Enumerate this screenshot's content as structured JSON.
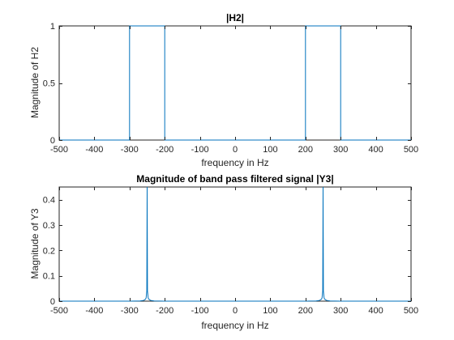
{
  "chart_data": [
    {
      "type": "line",
      "title": "|H2|",
      "xlabel": "frequency in Hz",
      "ylabel": "Magnitude of H2",
      "xlim": [
        -500,
        500
      ],
      "ylim": [
        0,
        1
      ],
      "xticks": [
        -500,
        -400,
        -300,
        -200,
        -100,
        0,
        100,
        200,
        300,
        400,
        500
      ],
      "yticks": [
        0,
        0.5,
        1
      ],
      "grid": false,
      "line_color": "#0072BD",
      "series": [
        {
          "x": [
            -500,
            -300,
            -300,
            -200,
            -200,
            200,
            200,
            300,
            300,
            500
          ],
          "y": [
            0,
            0,
            1,
            1,
            0,
            0,
            1,
            1,
            0,
            0
          ]
        }
      ]
    },
    {
      "type": "line",
      "title": "Magnitude of band pass filtered signal |Y3|",
      "xlabel": "frequency in Hz",
      "ylabel": "Magnitude of Y3",
      "xlim": [
        -500,
        500
      ],
      "ylim": [
        0,
        0.45
      ],
      "xticks": [
        -500,
        -400,
        -300,
        -200,
        -100,
        0,
        100,
        200,
        300,
        400,
        500
      ],
      "yticks": [
        0,
        0.1,
        0.2,
        0.3,
        0.4
      ],
      "grid": false,
      "line_color": "#0072BD",
      "series": [
        {
          "x": [
            -500,
            -300,
            -270,
            -260,
            -256,
            -253,
            -251,
            -250,
            -249,
            -247,
            -244,
            -240,
            -230,
            -200,
            200,
            230,
            240,
            244,
            247,
            249,
            250,
            251,
            253,
            256,
            260,
            270,
            300,
            500
          ],
          "y": [
            0,
            0,
            0.001,
            0.003,
            0.006,
            0.012,
            0.04,
            0.45,
            0.04,
            0.012,
            0.006,
            0.003,
            0.001,
            0,
            0,
            0.001,
            0.003,
            0.006,
            0.012,
            0.04,
            0.45,
            0.04,
            0.012,
            0.006,
            0.003,
            0.001,
            0,
            0
          ]
        }
      ]
    }
  ]
}
